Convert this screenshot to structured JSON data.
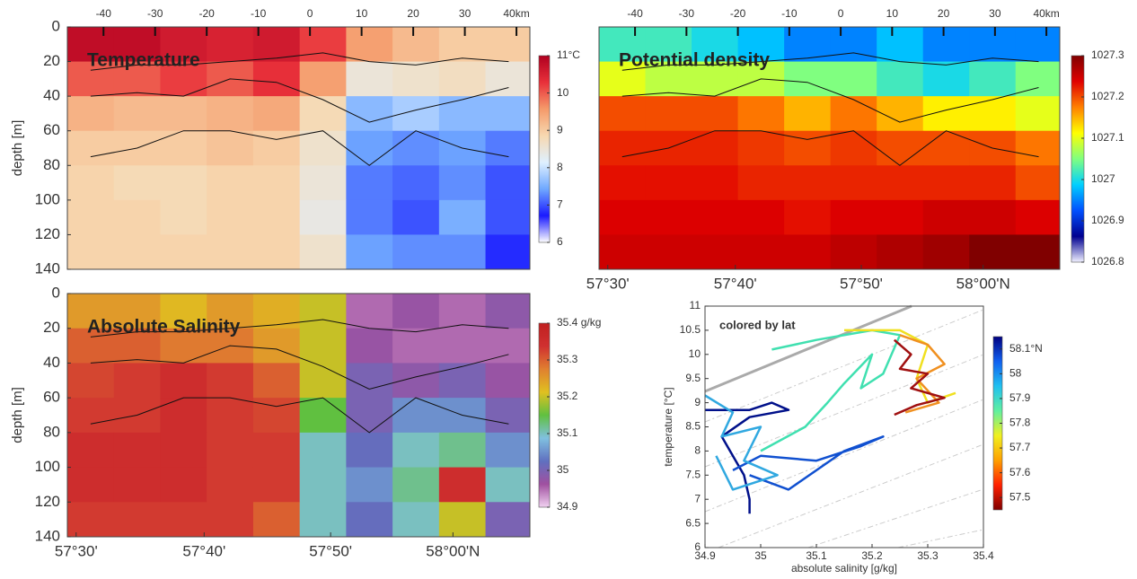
{
  "isopycnals": {
    "x": [
      -42.5,
      -33.5,
      -24.5,
      -15.5,
      -6.5,
      2.5,
      11.5,
      20.5,
      29.5,
      38.5
    ],
    "depths": [
      [
        25,
        22,
        22,
        20,
        18,
        15,
        20,
        22,
        18,
        20
      ],
      [
        40,
        38,
        40,
        30,
        32,
        42,
        55,
        48,
        42,
        35
      ],
      [
        75,
        70,
        60,
        60,
        65,
        60,
        80,
        60,
        70,
        75
      ]
    ]
  },
  "chart_data": [
    {
      "type": "heatmap",
      "title": "Temperature",
      "ylabel": "depth  [m]",
      "x": [
        -42.5,
        -33.5,
        -24.5,
        -15.5,
        -6.5,
        2.5,
        11.5,
        20.5,
        29.5,
        38.5
      ],
      "y": [
        10,
        30,
        50,
        70,
        90,
        110,
        130
      ],
      "values": [
        [
          10.8,
          10.8,
          10.6,
          10.5,
          10.6,
          10.2,
          9.5,
          9.2,
          9.0,
          9.0
        ],
        [
          10,
          10,
          10.2,
          10,
          10.3,
          9.5,
          8.5,
          8.6,
          8.7,
          8.5
        ],
        [
          9.3,
          9.2,
          9.2,
          9.3,
          9.4,
          8.8,
          7.6,
          7.8,
          7.6,
          7.6
        ],
        [
          9.0,
          9.0,
          9.0,
          9.1,
          9.0,
          8.6,
          7.4,
          7.3,
          7.4,
          7.2
        ],
        [
          8.9,
          8.8,
          8.8,
          8.9,
          8.9,
          8.5,
          7.2,
          7.1,
          7.3,
          7.0
        ],
        [
          8.9,
          8.9,
          8.8,
          8.9,
          8.9,
          8.4,
          7.2,
          7.0,
          7.5,
          7.0
        ],
        [
          8.9,
          8.9,
          8.9,
          8.9,
          8.9,
          8.6,
          7.4,
          7.3,
          7.3,
          6.8
        ]
      ],
      "xlim": [
        -47,
        42.6
      ],
      "ylim": [
        0,
        140
      ],
      "yticks": [
        0,
        20,
        40,
        60,
        80,
        100,
        120,
        140
      ],
      "xticks": [
        -40,
        -30,
        -20,
        -10,
        0,
        10,
        20,
        30,
        {
          "value": 40,
          "label": "40km"
        }
      ],
      "colormap": [
        "#ffffff",
        "#1a1aff",
        "#6fa8ff",
        "#dff0ff",
        "#f7d8b0",
        "#f59a6a",
        "#e8303a",
        "#b00020"
      ],
      "colorbar": {
        "lim": [
          6,
          11
        ],
        "ticks": [
          6,
          7,
          8,
          9,
          10,
          {
            "value": 11,
            "label": "11°C"
          }
        ]
      }
    },
    {
      "type": "heatmap",
      "title": "Potential density",
      "ylabel": null,
      "x": [
        -42.5,
        -33.5,
        -24.5,
        -15.5,
        -6.5,
        2.5,
        11.5,
        20.5,
        29.5,
        38.5
      ],
      "y": [
        10,
        30,
        50,
        70,
        90,
        110,
        130
      ],
      "values": [
        [
          1027.02,
          1027.02,
          1027.0,
          1026.98,
          1026.95,
          1026.95,
          1026.98,
          1026.95,
          1026.95,
          1026.95
        ],
        [
          1027.1,
          1027.08,
          1027.08,
          1027.08,
          1027.05,
          1027.05,
          1027.02,
          1027.0,
          1027.02,
          1027.05
        ],
        [
          1027.2,
          1027.2,
          1027.2,
          1027.18,
          1027.15,
          1027.18,
          1027.15,
          1027.12,
          1027.12,
          1027.1
        ],
        [
          1027.22,
          1027.22,
          1027.22,
          1027.21,
          1027.2,
          1027.21,
          1027.2,
          1027.2,
          1027.2,
          1027.18
        ],
        [
          1027.23,
          1027.23,
          1027.23,
          1027.22,
          1027.22,
          1027.22,
          1027.22,
          1027.22,
          1027.22,
          1027.2
        ],
        [
          1027.24,
          1027.24,
          1027.24,
          1027.24,
          1027.23,
          1027.24,
          1027.24,
          1027.25,
          1027.25,
          1027.24
        ],
        [
          1027.25,
          1027.25,
          1027.25,
          1027.25,
          1027.25,
          1027.26,
          1027.27,
          1027.28,
          1027.3,
          1027.3
        ]
      ],
      "xlim": [
        -47,
        42.6
      ],
      "ylim": [
        0,
        140
      ],
      "yticks": [],
      "xticks": [
        -40,
        -30,
        -20,
        -10,
        0,
        10,
        20,
        30,
        {
          "value": 40,
          "label": "40km"
        }
      ],
      "lat_ticks": [
        {
          "value": -45.3,
          "label": "57°30'"
        },
        {
          "value": -20.5,
          "label": "57°40'"
        },
        {
          "value": 4,
          "label": "57°50'"
        },
        {
          "value": 27.7,
          "label": "58°00'N"
        }
      ],
      "colormap": [
        "#f0f0ff",
        "#000090",
        "#0050ff",
        "#00d0ff",
        "#80ff80",
        "#ffff00",
        "#ff8000",
        "#e00000",
        "#800000"
      ],
      "colorbar": {
        "lim": [
          1026.8,
          1027.3
        ],
        "ticks": [
          1026.8,
          1026.9,
          1027,
          1027.1,
          1027.2,
          1027.3
        ]
      }
    },
    {
      "type": "heatmap",
      "title": "Absolute Salinity",
      "ylabel": "depth  [m]",
      "x": [
        -42.5,
        -33.5,
        -24.5,
        -15.5,
        -6.5,
        2.5,
        11.5,
        20.5,
        29.5,
        38.5
      ],
      "y": [
        10,
        30,
        50,
        70,
        90,
        110,
        130
      ],
      "values": [
        [
          35.25,
          35.25,
          35.22,
          35.25,
          35.23,
          35.2,
          34.95,
          34.97,
          34.95,
          34.98
        ],
        [
          35.3,
          35.3,
          35.28,
          35.28,
          35.25,
          35.2,
          34.97,
          34.95,
          34.95,
          34.95
        ],
        [
          35.32,
          35.33,
          35.35,
          35.33,
          35.3,
          35.2,
          35.0,
          34.98,
          35.0,
          34.97
        ],
        [
          35.33,
          35.33,
          35.35,
          35.33,
          35.32,
          35.15,
          35.0,
          35.05,
          35.05,
          35.0
        ],
        [
          35.35,
          35.35,
          35.35,
          35.33,
          35.33,
          35.1,
          35.02,
          35.1,
          35.12,
          35.05
        ],
        [
          35.35,
          35.35,
          35.35,
          35.33,
          35.33,
          35.1,
          35.05,
          35.12,
          35.35,
          35.1
        ],
        [
          35.33,
          35.33,
          35.33,
          35.33,
          35.3,
          35.1,
          35.02,
          35.1,
          35.2,
          35.0
        ]
      ],
      "xlim": [
        -47,
        42.6
      ],
      "ylim": [
        0,
        140
      ],
      "yticks": [
        0,
        20,
        40,
        60,
        80,
        100,
        120,
        140
      ],
      "lat_ticks": [
        {
          "value": -45.3,
          "label": "57°30'"
        },
        {
          "value": -20.5,
          "label": "57°40'"
        },
        {
          "value": 4,
          "label": "57°50'"
        },
        {
          "value": 27.7,
          "label": "58°00'N"
        }
      ],
      "colormap": [
        "#f0d0f0",
        "#a050a0",
        "#6070c0",
        "#80c0e0",
        "#60c040",
        "#e0c020",
        "#e08030",
        "#d03030",
        "#c02020"
      ],
      "colorbar": {
        "lim": [
          34.9,
          35.4
        ],
        "ticks": [
          34.9,
          35,
          35.1,
          35.2,
          35.3,
          {
            "value": 35.4,
            "label": "35.4 g/kg"
          }
        ]
      }
    },
    {
      "type": "line",
      "annotation": "colored by lat",
      "xlabel": "absolute salinity [g/kg]",
      "ylabel": "temperature  [°C]",
      "xlim": [
        34.9,
        35.4
      ],
      "ylim": [
        6,
        11
      ],
      "xticks": [
        34.9,
        35,
        35.1,
        35.2,
        35.3,
        35.4
      ],
      "yticks": [
        6,
        6.5,
        7,
        7.5,
        8,
        8.5,
        9,
        9.5,
        10,
        10.5,
        11
      ],
      "series": [
        {
          "color": "#00108a",
          "x": [
            34.9,
            34.98,
            35.02,
            35.05,
            34.98,
            34.93,
            34.97,
            34.98,
            34.98
          ],
          "values": [
            8.85,
            8.85,
            9.0,
            8.85,
            8.7,
            8.3,
            7.5,
            7.0,
            6.7
          ]
        },
        {
          "color": "#1050d0",
          "x": [
            34.95,
            35.0,
            35.1,
            35.18,
            35.22,
            35.15,
            35.05,
            34.98
          ],
          "values": [
            7.6,
            7.9,
            7.8,
            8.1,
            8.3,
            8.0,
            7.2,
            7.5
          ]
        },
        {
          "color": "#30a8e0",
          "x": [
            34.9,
            34.95,
            34.93,
            35.0,
            34.97,
            35.03,
            34.95,
            34.92
          ],
          "values": [
            9.15,
            8.8,
            8.3,
            8.5,
            7.8,
            7.5,
            7.2,
            7.9
          ]
        },
        {
          "color": "#40e0b0",
          "x": [
            35.0,
            35.08,
            35.12,
            35.15,
            35.2,
            35.18,
            35.22,
            35.25,
            35.2,
            35.1,
            35.02
          ],
          "values": [
            8.0,
            8.5,
            9.0,
            9.4,
            10.0,
            9.3,
            9.6,
            10.4,
            10.5,
            10.3,
            10.1
          ]
        },
        {
          "color": "#f0e020",
          "x": [
            35.15,
            35.25,
            35.3,
            35.28,
            35.3,
            35.35
          ],
          "values": [
            10.5,
            10.5,
            10.2,
            9.5,
            9.0,
            9.2
          ]
        },
        {
          "color": "#f09020",
          "x": [
            35.25,
            35.3,
            35.33,
            35.28,
            35.32,
            35.26
          ],
          "values": [
            10.4,
            10.2,
            9.8,
            9.5,
            9.0,
            8.8
          ]
        },
        {
          "color": "#a01010",
          "x": [
            35.24,
            35.27,
            35.25,
            35.3,
            35.27,
            35.33,
            35.28,
            35.24
          ],
          "values": [
            10.3,
            10.0,
            9.7,
            9.6,
            9.3,
            9.1,
            8.95,
            8.75
          ]
        }
      ],
      "colormap": [
        "#800000",
        "#ff2000",
        "#ffa000",
        "#f0f020",
        "#60f0a0",
        "#20c0f0",
        "#1060f0",
        "#000080"
      ],
      "colorbar": {
        "lim": [
          57.45,
          58.15
        ],
        "ticks": [
          57.5,
          57.6,
          57.7,
          57.8,
          57.9,
          58,
          {
            "value": 58.1,
            "label": "58.1°N"
          }
        ]
      }
    }
  ]
}
